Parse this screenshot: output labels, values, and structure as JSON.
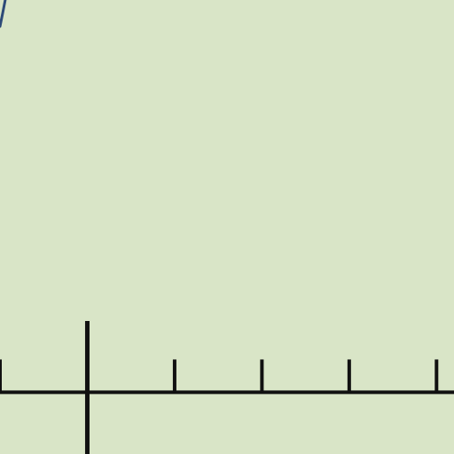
{
  "chart_data": {
    "type": "line",
    "title": "",
    "xlabel": "",
    "ylabel": "",
    "xlim": [
      -1.0,
      4.2
    ],
    "ylim": [
      -0.7,
      4.45
    ],
    "x_ticks": [
      -1,
      0,
      1,
      2,
      3,
      4
    ],
    "x_tick_labels": [],
    "grid": false,
    "legend": "none",
    "series": [
      {
        "x": [
          -1.0,
          -0.97,
          -0.94
        ],
        "y": [
          4.15,
          4.3,
          4.45
        ]
      }
    ],
    "colors": {
      "background": "#d9e5c7",
      "axis": "#111111",
      "curve": "#2d4a78"
    }
  }
}
